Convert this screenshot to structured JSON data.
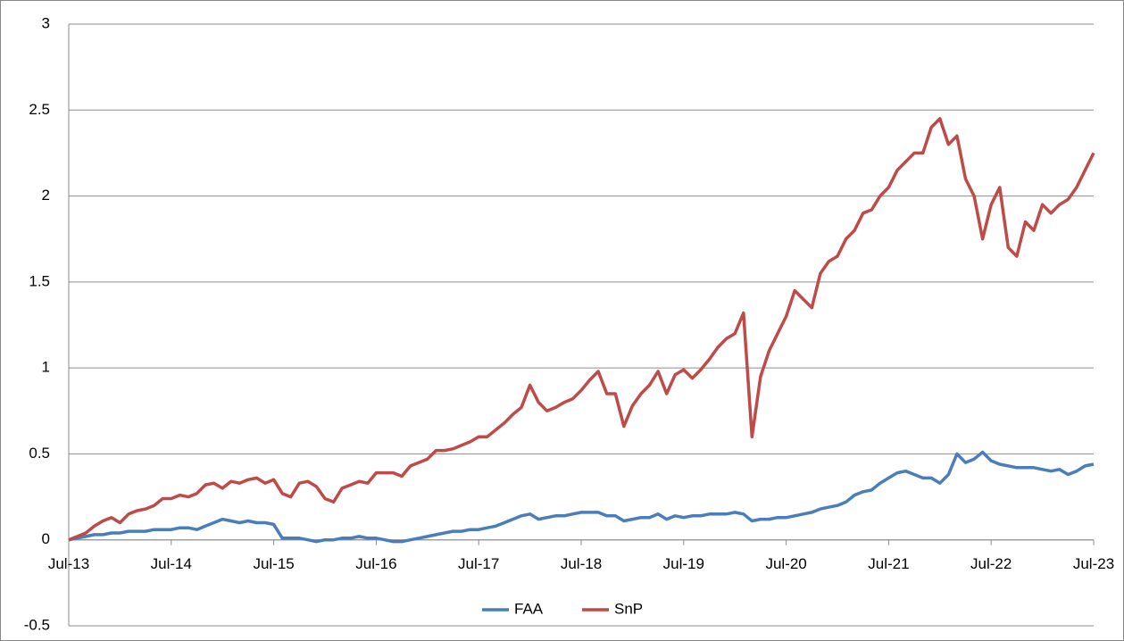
{
  "chart_data": {
    "type": "line",
    "x": [
      "Jul-13",
      "Aug-13",
      "Sep-13",
      "Oct-13",
      "Nov-13",
      "Dec-13",
      "Jan-14",
      "Feb-14",
      "Mar-14",
      "Apr-14",
      "May-14",
      "Jun-14",
      "Jul-14",
      "Aug-14",
      "Sep-14",
      "Oct-14",
      "Nov-14",
      "Dec-14",
      "Jan-15",
      "Feb-15",
      "Mar-15",
      "Apr-15",
      "May-15",
      "Jun-15",
      "Jul-15",
      "Aug-15",
      "Sep-15",
      "Oct-15",
      "Nov-15",
      "Dec-15",
      "Jan-16",
      "Feb-16",
      "Mar-16",
      "Apr-16",
      "May-16",
      "Jun-16",
      "Jul-16",
      "Aug-16",
      "Sep-16",
      "Oct-16",
      "Nov-16",
      "Dec-16",
      "Jan-17",
      "Feb-17",
      "Mar-17",
      "Apr-17",
      "May-17",
      "Jun-17",
      "Jul-17",
      "Aug-17",
      "Sep-17",
      "Oct-17",
      "Nov-17",
      "Dec-17",
      "Jan-18",
      "Feb-18",
      "Mar-18",
      "Apr-18",
      "May-18",
      "Jun-18",
      "Jul-18",
      "Aug-18",
      "Sep-18",
      "Oct-18",
      "Nov-18",
      "Dec-18",
      "Jan-19",
      "Feb-19",
      "Mar-19",
      "Apr-19",
      "May-19",
      "Jun-19",
      "Jul-19",
      "Aug-19",
      "Sep-19",
      "Oct-19",
      "Nov-19",
      "Dec-19",
      "Jan-20",
      "Feb-20",
      "Mar-20",
      "Apr-20",
      "May-20",
      "Jun-20",
      "Jul-20",
      "Aug-20",
      "Sep-20",
      "Oct-20",
      "Nov-20",
      "Dec-20",
      "Jan-21",
      "Feb-21",
      "Mar-21",
      "Apr-21",
      "May-21",
      "Jun-21",
      "Jul-21",
      "Aug-21",
      "Sep-21",
      "Oct-21",
      "Nov-21",
      "Dec-21",
      "Jan-22",
      "Feb-22",
      "Mar-22",
      "Apr-22",
      "May-22",
      "Jun-22",
      "Jul-22",
      "Aug-22",
      "Sep-22",
      "Oct-22",
      "Nov-22",
      "Dec-22",
      "Jan-23",
      "Feb-23",
      "Mar-23",
      "Apr-23",
      "May-23",
      "Jun-23",
      "Jul-23"
    ],
    "xticks": [
      "Jul-13",
      "Jul-14",
      "Jul-15",
      "Jul-16",
      "Jul-17",
      "Jul-18",
      "Jul-19",
      "Jul-20",
      "Jul-21",
      "Jul-22",
      "Jul-23"
    ],
    "series": [
      {
        "name": "FAA",
        "color": "#4a7ebb",
        "values": [
          0,
          0.01,
          0.02,
          0.03,
          0.03,
          0.04,
          0.04,
          0.05,
          0.05,
          0.05,
          0.06,
          0.06,
          0.06,
          0.07,
          0.07,
          0.06,
          0.08,
          0.1,
          0.12,
          0.11,
          0.1,
          0.11,
          0.1,
          0.1,
          0.09,
          0.01,
          0.01,
          0.01,
          0,
          -0.01,
          0,
          0,
          0.01,
          0.01,
          0.02,
          0.01,
          0.01,
          0,
          -0.01,
          -0.01,
          0,
          0.01,
          0.02,
          0.03,
          0.04,
          0.05,
          0.05,
          0.06,
          0.06,
          0.07,
          0.08,
          0.1,
          0.12,
          0.14,
          0.15,
          0.12,
          0.13,
          0.14,
          0.14,
          0.15,
          0.16,
          0.16,
          0.16,
          0.14,
          0.14,
          0.11,
          0.12,
          0.13,
          0.13,
          0.15,
          0.12,
          0.14,
          0.13,
          0.14,
          0.14,
          0.15,
          0.15,
          0.15,
          0.16,
          0.15,
          0.11,
          0.12,
          0.12,
          0.13,
          0.13,
          0.14,
          0.15,
          0.16,
          0.18,
          0.19,
          0.2,
          0.22,
          0.26,
          0.28,
          0.29,
          0.33,
          0.36,
          0.39,
          0.4,
          0.38,
          0.36,
          0.36,
          0.33,
          0.38,
          0.5,
          0.45,
          0.47,
          0.51,
          0.46,
          0.44,
          0.43,
          0.42,
          0.42,
          0.42,
          0.41,
          0.4,
          0.41,
          0.38,
          0.4,
          0.43,
          0.44
        ]
      },
      {
        "name": "SnP",
        "color": "#be4b48",
        "values": [
          0,
          0.02,
          0.04,
          0.08,
          0.11,
          0.13,
          0.1,
          0.15,
          0.17,
          0.18,
          0.2,
          0.24,
          0.24,
          0.26,
          0.25,
          0.27,
          0.32,
          0.33,
          0.3,
          0.34,
          0.33,
          0.35,
          0.36,
          0.33,
          0.35,
          0.27,
          0.25,
          0.33,
          0.34,
          0.31,
          0.24,
          0.22,
          0.3,
          0.32,
          0.34,
          0.33,
          0.39,
          0.39,
          0.39,
          0.37,
          0.43,
          0.45,
          0.47,
          0.52,
          0.52,
          0.53,
          0.55,
          0.57,
          0.6,
          0.6,
          0.64,
          0.68,
          0.73,
          0.77,
          0.9,
          0.8,
          0.75,
          0.77,
          0.8,
          0.82,
          0.87,
          0.93,
          0.98,
          0.85,
          0.85,
          0.66,
          0.78,
          0.85,
          0.9,
          0.98,
          0.85,
          0.96,
          0.99,
          0.94,
          0.99,
          1.05,
          1.12,
          1.17,
          1.2,
          1.32,
          0.6,
          0.95,
          1.1,
          1.2,
          1.3,
          1.45,
          1.4,
          1.35,
          1.55,
          1.62,
          1.65,
          1.75,
          1.8,
          1.9,
          1.92,
          2.0,
          2.05,
          2.15,
          2.2,
          2.25,
          2.25,
          2.4,
          2.45,
          2.3,
          2.35,
          2.1,
          2.0,
          1.75,
          1.95,
          2.05,
          1.7,
          1.65,
          1.85,
          1.8,
          1.95,
          1.9,
          1.95,
          1.98,
          2.05,
          2.15,
          2.25
        ]
      }
    ],
    "ylim": [
      -0.5,
      3
    ],
    "yticks": [
      -0.5,
      0,
      0.5,
      1,
      1.5,
      2,
      2.5,
      3
    ],
    "grid": true,
    "legend": "bottom"
  }
}
